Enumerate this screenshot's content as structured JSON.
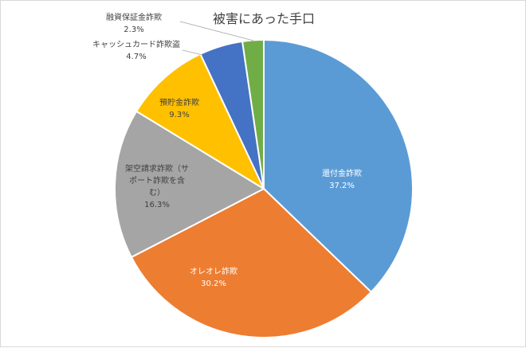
{
  "chart_data": {
    "type": "pie",
    "title": "被害にあった手口",
    "categories": [
      "還付金詐欺",
      "オレオレ詐欺",
      "架空請求詐欺（サポート詐欺を含む）",
      "預貯金詐欺",
      "キャッシュカード詐欺盗",
      "融資保証金詐欺"
    ],
    "values": [
      37.2,
      30.2,
      16.3,
      9.3,
      4.7,
      2.3
    ],
    "value_labels": [
      "37.2%",
      "30.2%",
      "16.3%",
      "9.3%",
      "4.7%",
      "2.3%"
    ],
    "label_lines": [
      [
        "還付金詐欺"
      ],
      [
        "オレオレ詐欺"
      ],
      [
        "架空請求詐欺（サ",
        "ポート詐欺を含",
        "む）"
      ],
      [
        "預貯金詐欺"
      ],
      [
        "キャッシュカード詐欺盗"
      ],
      [
        "融資保証金詐欺"
      ]
    ],
    "colors": [
      "#5B9BD5",
      "#ED7D31",
      "#A5A5A5",
      "#FFC000",
      "#4472C4",
      "#70AD47"
    ],
    "legend": "none",
    "start_angle": "top, clockwise"
  }
}
